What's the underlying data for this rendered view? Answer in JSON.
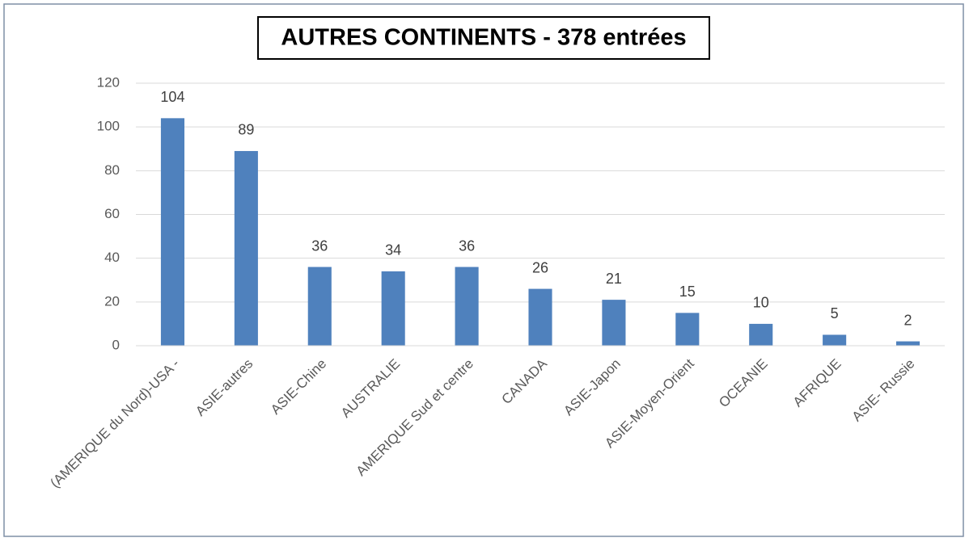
{
  "chart_data": {
    "type": "bar",
    "title": "AUTRES CONTINENTS - 378 entrées",
    "categories": [
      "(AMERIQUE du Nord)-USA -",
      "ASIE-autres",
      "ASIE-Chine",
      "AUSTRALIE",
      "AMERIQUE Sud et centre",
      "CANADA",
      "ASIE-Japon",
      "ASIE-Moyen-Orient",
      "OCEANIE",
      "AFRIQUE",
      "ASIE- Russie"
    ],
    "values": [
      104,
      89,
      36,
      34,
      36,
      26,
      21,
      15,
      10,
      5,
      2
    ],
    "color": "#4f81bd",
    "ylim": [
      0,
      120
    ],
    "yticks": [
      0,
      20,
      40,
      60,
      80,
      100,
      120
    ],
    "grid": true
  }
}
